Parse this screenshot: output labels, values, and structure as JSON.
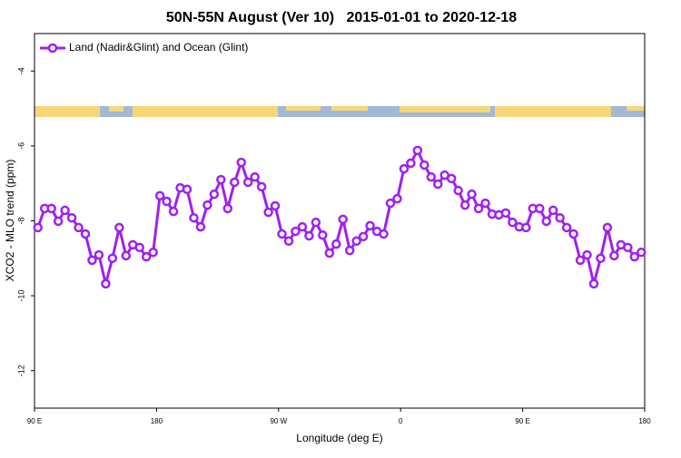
{
  "chart_data": {
    "type": "line",
    "title": "50N-55N August (Ver 10)   2015-01-01 to 2020-12-18",
    "xlabel": "Longitude (deg E)",
    "ylabel": "XCO2 - MLO trend (ppm)",
    "x": [
      92.5,
      97.5,
      102.5,
      107.5,
      112.5,
      117.5,
      122.5,
      127.5,
      132.5,
      137.5,
      142.5,
      147.5,
      152.5,
      157.5,
      162.5,
      167.5,
      172.5,
      177.5,
      182.5,
      187.5,
      192.5,
      197.5,
      202.5,
      207.5,
      212.5,
      217.5,
      222.5,
      227.5,
      232.5,
      237.5,
      242.5,
      247.5,
      252.5,
      257.5,
      262.5,
      267.5,
      272.5,
      277.5,
      282.5,
      287.5,
      292.5,
      297.5,
      302.5,
      307.5,
      312.5,
      317.5,
      322.5,
      327.5,
      332.5,
      337.5,
      342.5,
      347.5,
      352.5,
      357.5,
      362.5,
      367.5,
      372.5,
      377.5,
      382.5,
      387.5,
      392.5,
      397.5,
      402.5,
      407.5,
      412.5,
      417.5,
      422.5,
      427.5,
      432.5,
      437.5,
      442.5,
      447.5,
      452.5,
      457.5,
      462.5,
      467.5,
      472.5,
      477.5,
      482.5,
      487.5,
      492.5,
      497.5,
      502.5,
      507.5,
      512.5,
      517.5,
      522.5,
      527.5,
      532.5,
      537.5
    ],
    "series": [
      {
        "name": "Land (Nadir&Glint) and Ocean (Glint)",
        "color": "#a020f0",
        "values": [
          -8.18,
          -7.67,
          -7.67,
          -8.01,
          -7.72,
          -7.92,
          -8.18,
          -8.35,
          -9.05,
          -8.91,
          -9.68,
          -9.0,
          -8.18,
          -8.93,
          -8.64,
          -8.71,
          -8.96,
          -8.84,
          -7.33,
          -7.48,
          -7.75,
          -7.12,
          -7.16,
          -7.92,
          -8.16,
          -7.58,
          -7.29,
          -6.9,
          -7.67,
          -6.97,
          -6.44,
          -6.97,
          -6.83,
          -7.09,
          -7.77,
          -7.6,
          -8.35,
          -8.54,
          -8.28,
          -8.16,
          -8.4,
          -8.04,
          -8.38,
          -8.86,
          -8.62,
          -7.96,
          -8.79,
          -8.54,
          -8.42,
          -8.13,
          -8.28,
          -8.35,
          -7.53,
          -7.41,
          -6.61,
          -6.46,
          -6.12,
          -6.51,
          -6.83,
          -7.02,
          -6.78,
          -6.87,
          -7.19,
          -7.58,
          -7.29,
          -7.67,
          -7.53,
          -7.82,
          -7.84,
          -7.79,
          -8.04,
          -8.16,
          -8.18,
          -7.67,
          -7.67,
          -8.01,
          -7.72,
          -7.92,
          -8.18,
          -8.35,
          -9.05,
          -8.91,
          -9.68,
          -9.0,
          -8.18,
          -8.93,
          -8.64,
          -8.71,
          -8.96,
          -8.84
        ]
      }
    ],
    "xlim": [
      90,
      540
    ],
    "xticks": [
      {
        "value": 90,
        "label": "90 E"
      },
      180,
      {
        "value": 270,
        "label": "90 W"
      },
      {
        "value": 360,
        "label": "0"
      },
      {
        "value": 450,
        "label": "90 E"
      },
      {
        "value": 540,
        "label": "180"
      }
    ],
    "ylim": [
      -13,
      -3
    ],
    "yticks": [
      -4,
      -6,
      -8,
      -10,
      -12
    ],
    "legend": "upper left"
  }
}
